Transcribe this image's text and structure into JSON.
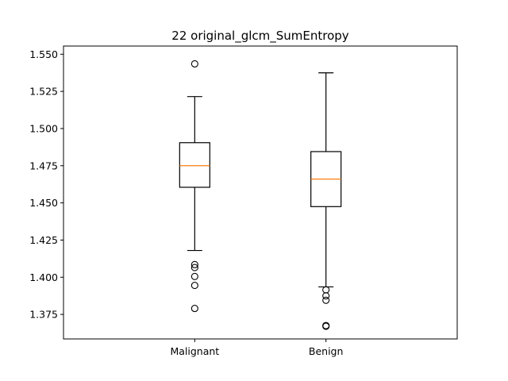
{
  "chart_data": {
    "type": "box",
    "title": "22 original_glcm_SumEntropy",
    "xlabel": "",
    "ylabel": "",
    "ylim": [
      1.3585,
      1.5555
    ],
    "yticks": [
      "1.375",
      "1.400",
      "1.425",
      "1.450",
      "1.475",
      "1.500",
      "1.525",
      "1.550"
    ],
    "categories": [
      "Malignant",
      "Benign"
    ],
    "boxes": [
      {
        "category": "Malignant",
        "q1": 1.4605,
        "median": 1.475,
        "q3": 1.4905,
        "whisker_low": 1.418,
        "whisker_high": 1.5215,
        "outliers": [
          1.5435,
          1.4085,
          1.4065,
          1.4005,
          1.3945,
          1.379
        ]
      },
      {
        "category": "Benign",
        "q1": 1.4475,
        "median": 1.466,
        "q3": 1.4845,
        "whisker_low": 1.3935,
        "whisker_high": 1.5375,
        "outliers": [
          1.3915,
          1.3875,
          1.3845,
          1.3675,
          1.367
        ]
      }
    ],
    "colors": {
      "box": "#000000",
      "median": "#ff7f0e",
      "outlier": "#000000"
    },
    "grid": false
  }
}
